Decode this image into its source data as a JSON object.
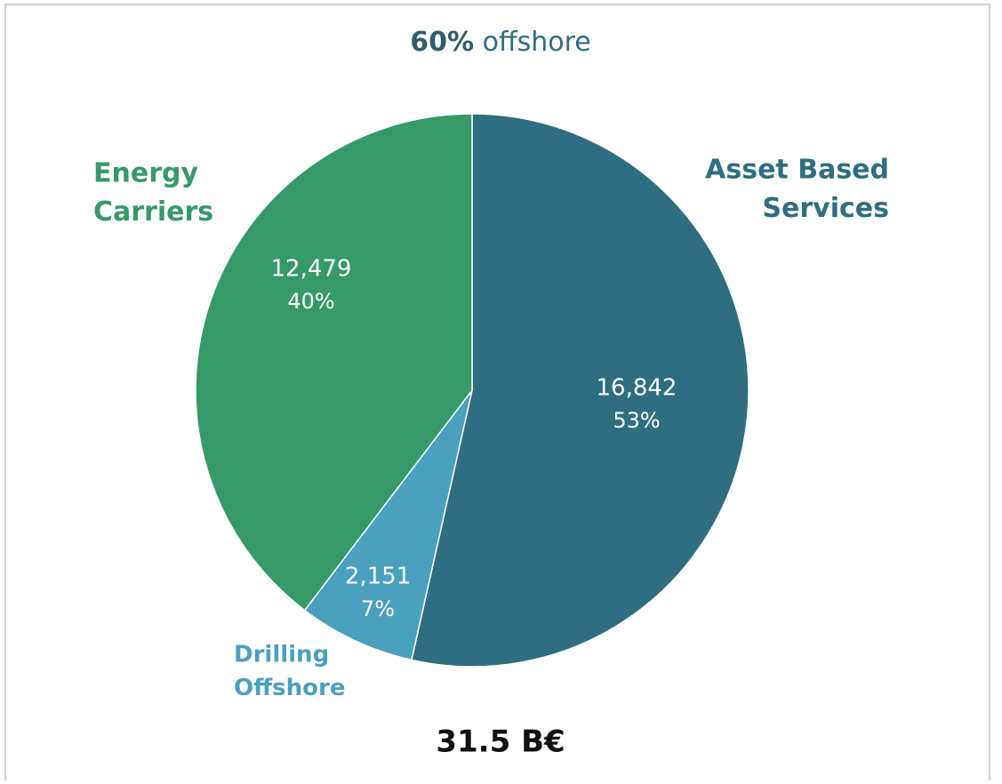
{
  "chart_data": {
    "type": "pie",
    "title": {
      "emphasis": "60%",
      "text": "offshore"
    },
    "categories": [
      [
        "Asset Based",
        "Services"
      ],
      [
        "Drilling",
        "Offshore"
      ],
      [
        "Energy",
        "Carriers"
      ]
    ],
    "values": [
      16842,
      2151,
      12479
    ],
    "value_labels": [
      "16,842",
      "2,151",
      "12,479"
    ],
    "percent_labels": [
      "53%",
      "7%",
      "40%"
    ],
    "colors": [
      "#2e6e80",
      "#4aa0bf",
      "#359a68"
    ],
    "total_label": "31.5 B€"
  }
}
